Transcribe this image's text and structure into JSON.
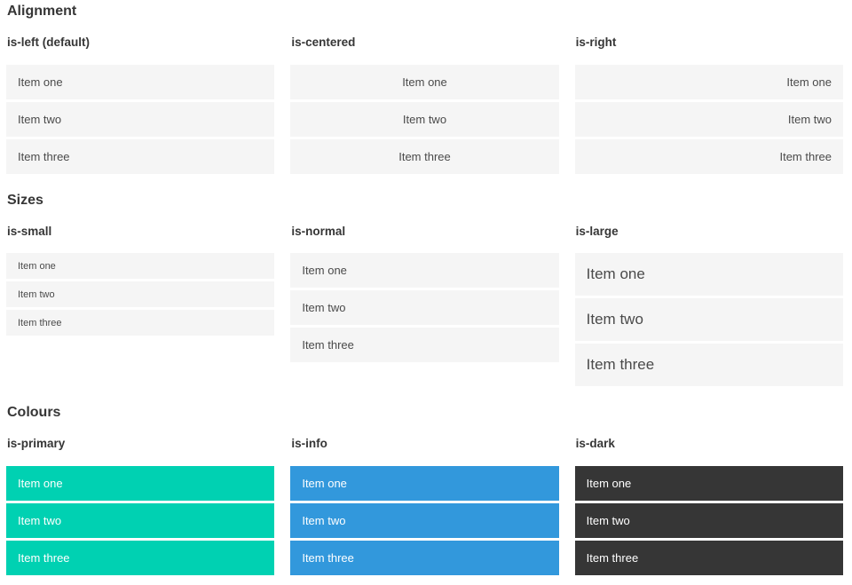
{
  "sections": [
    {
      "title": "Alignment",
      "groups": [
        {
          "label": "is-left (default)",
          "variant": "left",
          "items": [
            "Item one",
            "Item two",
            "Item three"
          ]
        },
        {
          "label": "is-centered",
          "variant": "centered",
          "items": [
            "Item one",
            "Item two",
            "Item three"
          ]
        },
        {
          "label": "is-right",
          "variant": "right",
          "items": [
            "Item one",
            "Item two",
            "Item three"
          ]
        }
      ]
    },
    {
      "title": "Sizes",
      "groups": [
        {
          "label": "is-small",
          "variant": "small",
          "items": [
            "Item one",
            "Item two",
            "Item three"
          ]
        },
        {
          "label": "is-normal",
          "variant": "normal",
          "items": [
            "Item one",
            "Item two",
            "Item three"
          ]
        },
        {
          "label": "is-large",
          "variant": "large",
          "items": [
            "Item one",
            "Item two",
            "Item three"
          ]
        }
      ]
    },
    {
      "title": "Colours",
      "groups": [
        {
          "label": "is-primary",
          "variant": "primary",
          "items": [
            "Item one",
            "Item two",
            "Item three"
          ]
        },
        {
          "label": "is-info",
          "variant": "info",
          "items": [
            "Item one",
            "Item two",
            "Item three"
          ]
        },
        {
          "label": "is-dark",
          "variant": "dark",
          "items": [
            "Item one",
            "Item two",
            "Item three"
          ]
        }
      ]
    }
  ],
  "colors": {
    "primary": "#00d1b2",
    "info": "#3298dc",
    "dark": "#363636",
    "item_bg": "#f5f5f5",
    "item_text": "#4a4a4a",
    "heading_text": "#363636"
  }
}
